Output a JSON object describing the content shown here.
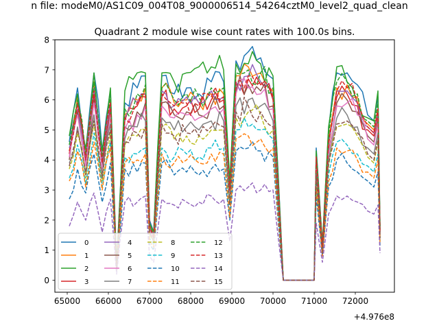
{
  "figure": {
    "suptitle": "n file: modeM0/AS1C09_004T08_9000006514_54264cztM0_level2_quad_clean",
    "offset_label": "+4.976e8"
  },
  "chart_data": {
    "type": "line",
    "title": "Quadrant 2 module wise count rates with 100.0s bins.",
    "xlabel": "",
    "ylabel": "",
    "xlim": [
      64700,
      72950
    ],
    "ylim": [
      -0.4,
      8.0
    ],
    "xticks": [
      65000,
      66000,
      67000,
      68000,
      69000,
      70000,
      71000,
      72000
    ],
    "yticks": [
      0,
      1,
      2,
      3,
      4,
      5,
      6,
      7,
      8
    ],
    "x_offset": 497600000,
    "grid": false,
    "legend_position": "lower-left",
    "legend_columns": 4,
    "anchor_x": [
      65050,
      65250,
      65450,
      65650,
      65850,
      66050,
      66200,
      66400,
      66700,
      66900,
      67000,
      67100,
      67300,
      67600,
      67900,
      68200,
      68500,
      68800,
      68950,
      69100,
      69400,
      69700,
      70000,
      70250,
      70300,
      70600,
      71000,
      71050,
      71200,
      71350,
      71550,
      71800,
      72050,
      72300,
      72450,
      72550,
      72600
    ],
    "series": [
      {
        "name": "0",
        "color": "#1f77b4",
        "dash": "solid",
        "values": [
          4.6,
          6.4,
          4.3,
          6.9,
          4.3,
          6.3,
          0.5,
          5.9,
          6.4,
          6.8,
          2.0,
          1.6,
          6.8,
          6.2,
          6.4,
          6.2,
          6.6,
          6.6,
          3.2,
          7.3,
          7.6,
          7.4,
          6.7,
          0.0,
          0.0,
          0.0,
          0.0,
          4.4,
          1.2,
          5.0,
          6.9,
          6.9,
          6.5,
          5.5,
          5.3,
          6.1,
          1.8
        ]
      },
      {
        "name": "1",
        "color": "#ff7f0e",
        "dash": "solid",
        "values": [
          4.3,
          6.1,
          4.2,
          6.6,
          4.1,
          6.0,
          0.4,
          5.5,
          6.0,
          6.4,
          1.9,
          1.5,
          6.4,
          5.9,
          6.0,
          5.9,
          6.2,
          6.2,
          3.0,
          6.8,
          7.1,
          6.9,
          6.3,
          0.0,
          0.0,
          0.0,
          0.0,
          4.2,
          1.2,
          4.7,
          6.4,
          6.5,
          6.1,
          5.2,
          5.0,
          5.7,
          1.7
        ]
      },
      {
        "name": "2",
        "color": "#2ca02c",
        "dash": "solid",
        "values": [
          4.8,
          6.2,
          4.4,
          6.9,
          4.3,
          6.4,
          0.5,
          6.3,
          6.9,
          6.9,
          1.9,
          1.6,
          6.9,
          6.6,
          6.9,
          7.1,
          7.1,
          7.0,
          3.3,
          7.2,
          7.2,
          7.2,
          6.8,
          0.0,
          0.0,
          0.0,
          0.0,
          4.3,
          1.2,
          5.1,
          7.1,
          6.6,
          5.9,
          5.4,
          5.3,
          6.3,
          1.8
        ]
      },
      {
        "name": "3",
        "color": "#d62728",
        "dash": "solid",
        "values": [
          4.2,
          5.9,
          4.0,
          6.2,
          3.9,
          5.8,
          0.4,
          5.3,
          5.8,
          6.1,
          1.8,
          1.5,
          6.1,
          5.7,
          5.8,
          5.7,
          6.0,
          6.0,
          2.9,
          6.5,
          6.7,
          6.5,
          6.0,
          0.0,
          0.0,
          0.0,
          0.0,
          4.0,
          1.1,
          4.5,
          6.1,
          6.2,
          5.8,
          5.0,
          4.8,
          5.5,
          1.6
        ]
      },
      {
        "name": "4",
        "color": "#9467bd",
        "dash": "solid",
        "values": [
          4.4,
          5.7,
          4.1,
          6.4,
          4.0,
          5.9,
          0.4,
          5.4,
          5.9,
          6.2,
          1.8,
          1.5,
          6.3,
          5.8,
          6.1,
          5.9,
          6.3,
          6.1,
          3.0,
          6.6,
          6.8,
          6.6,
          6.1,
          0.0,
          0.0,
          0.0,
          0.0,
          4.1,
          1.1,
          4.6,
          6.3,
          6.3,
          5.9,
          5.1,
          4.9,
          5.6,
          1.6
        ]
      },
      {
        "name": "5",
        "color": "#8c564b",
        "dash": "solid",
        "values": [
          4.0,
          5.6,
          3.9,
          6.0,
          3.8,
          5.6,
          0.4,
          5.1,
          5.6,
          5.9,
          1.7,
          1.4,
          5.9,
          5.5,
          5.6,
          5.5,
          5.8,
          5.8,
          2.8,
          6.3,
          6.5,
          6.3,
          5.8,
          0.0,
          0.0,
          0.0,
          0.0,
          3.9,
          1.1,
          4.3,
          5.9,
          6.0,
          5.6,
          4.8,
          4.6,
          5.3,
          1.6
        ]
      },
      {
        "name": "6",
        "color": "#e377c2",
        "dash": "solid",
        "values": [
          4.1,
          5.5,
          3.8,
          5.9,
          3.7,
          5.5,
          0.4,
          5.0,
          5.5,
          5.8,
          1.7,
          1.4,
          5.8,
          5.4,
          5.5,
          5.4,
          5.7,
          5.7,
          2.8,
          6.2,
          6.4,
          6.2,
          5.7,
          0.0,
          0.0,
          0.0,
          0.0,
          3.8,
          1.0,
          4.2,
          5.8,
          5.9,
          5.5,
          4.7,
          4.5,
          5.2,
          1.5
        ]
      },
      {
        "name": "7",
        "color": "#7f7f7f",
        "dash": "solid",
        "values": [
          3.9,
          5.1,
          3.6,
          5.5,
          3.5,
          5.2,
          0.4,
          4.7,
          5.1,
          5.3,
          1.6,
          1.3,
          5.4,
          5.0,
          5.1,
          5.0,
          5.3,
          5.3,
          2.6,
          5.8,
          6.0,
          5.8,
          5.3,
          0.0,
          0.0,
          0.0,
          0.0,
          3.6,
          1.0,
          4.0,
          5.4,
          5.5,
          5.1,
          4.4,
          4.2,
          4.9,
          1.4
        ]
      },
      {
        "name": "8",
        "color": "#bcbd22",
        "dash": "dashed",
        "values": [
          3.7,
          4.9,
          3.4,
          5.2,
          3.3,
          4.9,
          0.3,
          4.5,
          4.8,
          5.0,
          1.5,
          1.3,
          5.1,
          4.7,
          4.8,
          4.8,
          5.0,
          5.0,
          2.5,
          5.4,
          5.6,
          5.5,
          5.0,
          0.0,
          0.0,
          0.0,
          0.0,
          3.4,
          0.9,
          3.8,
          5.1,
          5.2,
          4.8,
          4.1,
          3.9,
          4.6,
          1.4
        ]
      },
      {
        "name": "9",
        "color": "#17becf",
        "dash": "dashed",
        "values": [
          3.4,
          4.5,
          3.2,
          4.9,
          3.1,
          4.6,
          0.3,
          4.1,
          4.2,
          4.4,
          1.4,
          1.2,
          4.4,
          4.1,
          4.2,
          4.1,
          4.4,
          4.4,
          2.2,
          5.0,
          5.1,
          5.0,
          4.7,
          0.0,
          0.0,
          0.0,
          0.0,
          3.2,
          0.9,
          3.5,
          4.6,
          4.5,
          4.2,
          3.8,
          3.6,
          4.2,
          1.3
        ]
      },
      {
        "name": "10",
        "color": "#1f77b4",
        "dash": "dashed",
        "values": [
          2.7,
          3.7,
          2.9,
          4.2,
          2.6,
          3.9,
          0.3,
          3.7,
          3.6,
          3.9,
          1.2,
          1.0,
          3.9,
          3.5,
          3.6,
          3.5,
          3.7,
          3.7,
          2.0,
          4.3,
          4.4,
          4.3,
          4.1,
          0.0,
          0.0,
          0.0,
          0.0,
          2.8,
          0.8,
          3.1,
          4.0,
          3.9,
          3.6,
          3.3,
          3.1,
          3.6,
          1.1
        ]
      },
      {
        "name": "11",
        "color": "#ff7f0e",
        "dash": "dashed",
        "values": [
          3.3,
          4.3,
          3.1,
          4.6,
          3.0,
          4.4,
          0.3,
          3.9,
          4.0,
          4.2,
          1.3,
          1.1,
          4.2,
          3.9,
          4.0,
          3.9,
          4.2,
          4.2,
          2.1,
          4.7,
          4.8,
          4.7,
          4.4,
          0.0,
          0.0,
          0.0,
          0.0,
          3.1,
          0.8,
          3.3,
          4.4,
          4.3,
          4.0,
          3.6,
          3.4,
          4.0,
          1.2
        ]
      },
      {
        "name": "12",
        "color": "#2ca02c",
        "dash": "dashed",
        "values": [
          4.5,
          6.0,
          4.2,
          6.6,
          4.1,
          6.1,
          0.5,
          5.7,
          6.2,
          6.5,
          1.8,
          1.5,
          6.4,
          6.0,
          6.2,
          6.1,
          6.4,
          6.4,
          3.1,
          6.9,
          7.0,
          6.9,
          6.4,
          0.0,
          0.0,
          0.0,
          0.0,
          4.2,
          1.1,
          4.8,
          6.6,
          6.6,
          6.2,
          5.3,
          5.1,
          5.9,
          1.7
        ]
      },
      {
        "name": "13",
        "color": "#d62728",
        "dash": "dashed",
        "values": [
          4.3,
          5.8,
          4.0,
          6.3,
          3.9,
          5.9,
          0.4,
          5.4,
          5.9,
          6.2,
          1.8,
          1.4,
          6.2,
          5.8,
          5.9,
          5.8,
          6.1,
          6.1,
          3.0,
          6.6,
          6.8,
          6.6,
          6.1,
          0.0,
          0.0,
          0.0,
          0.0,
          4.1,
          1.1,
          4.6,
          6.3,
          6.4,
          5.9,
          5.1,
          4.9,
          5.7,
          1.6
        ]
      },
      {
        "name": "14",
        "color": "#9467bd",
        "dash": "dashed",
        "values": [
          1.8,
          2.6,
          2.0,
          2.9,
          1.6,
          2.7,
          0.2,
          2.6,
          2.6,
          2.8,
          0.8,
          0.6,
          2.7,
          2.5,
          2.6,
          2.6,
          2.8,
          2.7,
          1.3,
          3.0,
          3.1,
          3.0,
          3.0,
          0.0,
          0.0,
          0.0,
          0.0,
          1.9,
          0.6,
          2.2,
          2.8,
          2.8,
          2.6,
          2.3,
          2.2,
          2.5,
          0.9
        ]
      },
      {
        "name": "15",
        "color": "#8c564b",
        "dash": "dashed",
        "values": [
          3.8,
          5.0,
          3.5,
          5.3,
          3.4,
          5.0,
          0.4,
          4.6,
          4.9,
          5.1,
          1.6,
          1.3,
          5.2,
          4.8,
          4.9,
          4.8,
          5.1,
          5.1,
          2.5,
          5.6,
          5.8,
          5.6,
          5.1,
          0.0,
          0.0,
          0.0,
          0.0,
          3.5,
          0.9,
          3.9,
          5.2,
          5.3,
          4.9,
          4.2,
          4.0,
          4.7,
          1.4
        ]
      }
    ]
  }
}
